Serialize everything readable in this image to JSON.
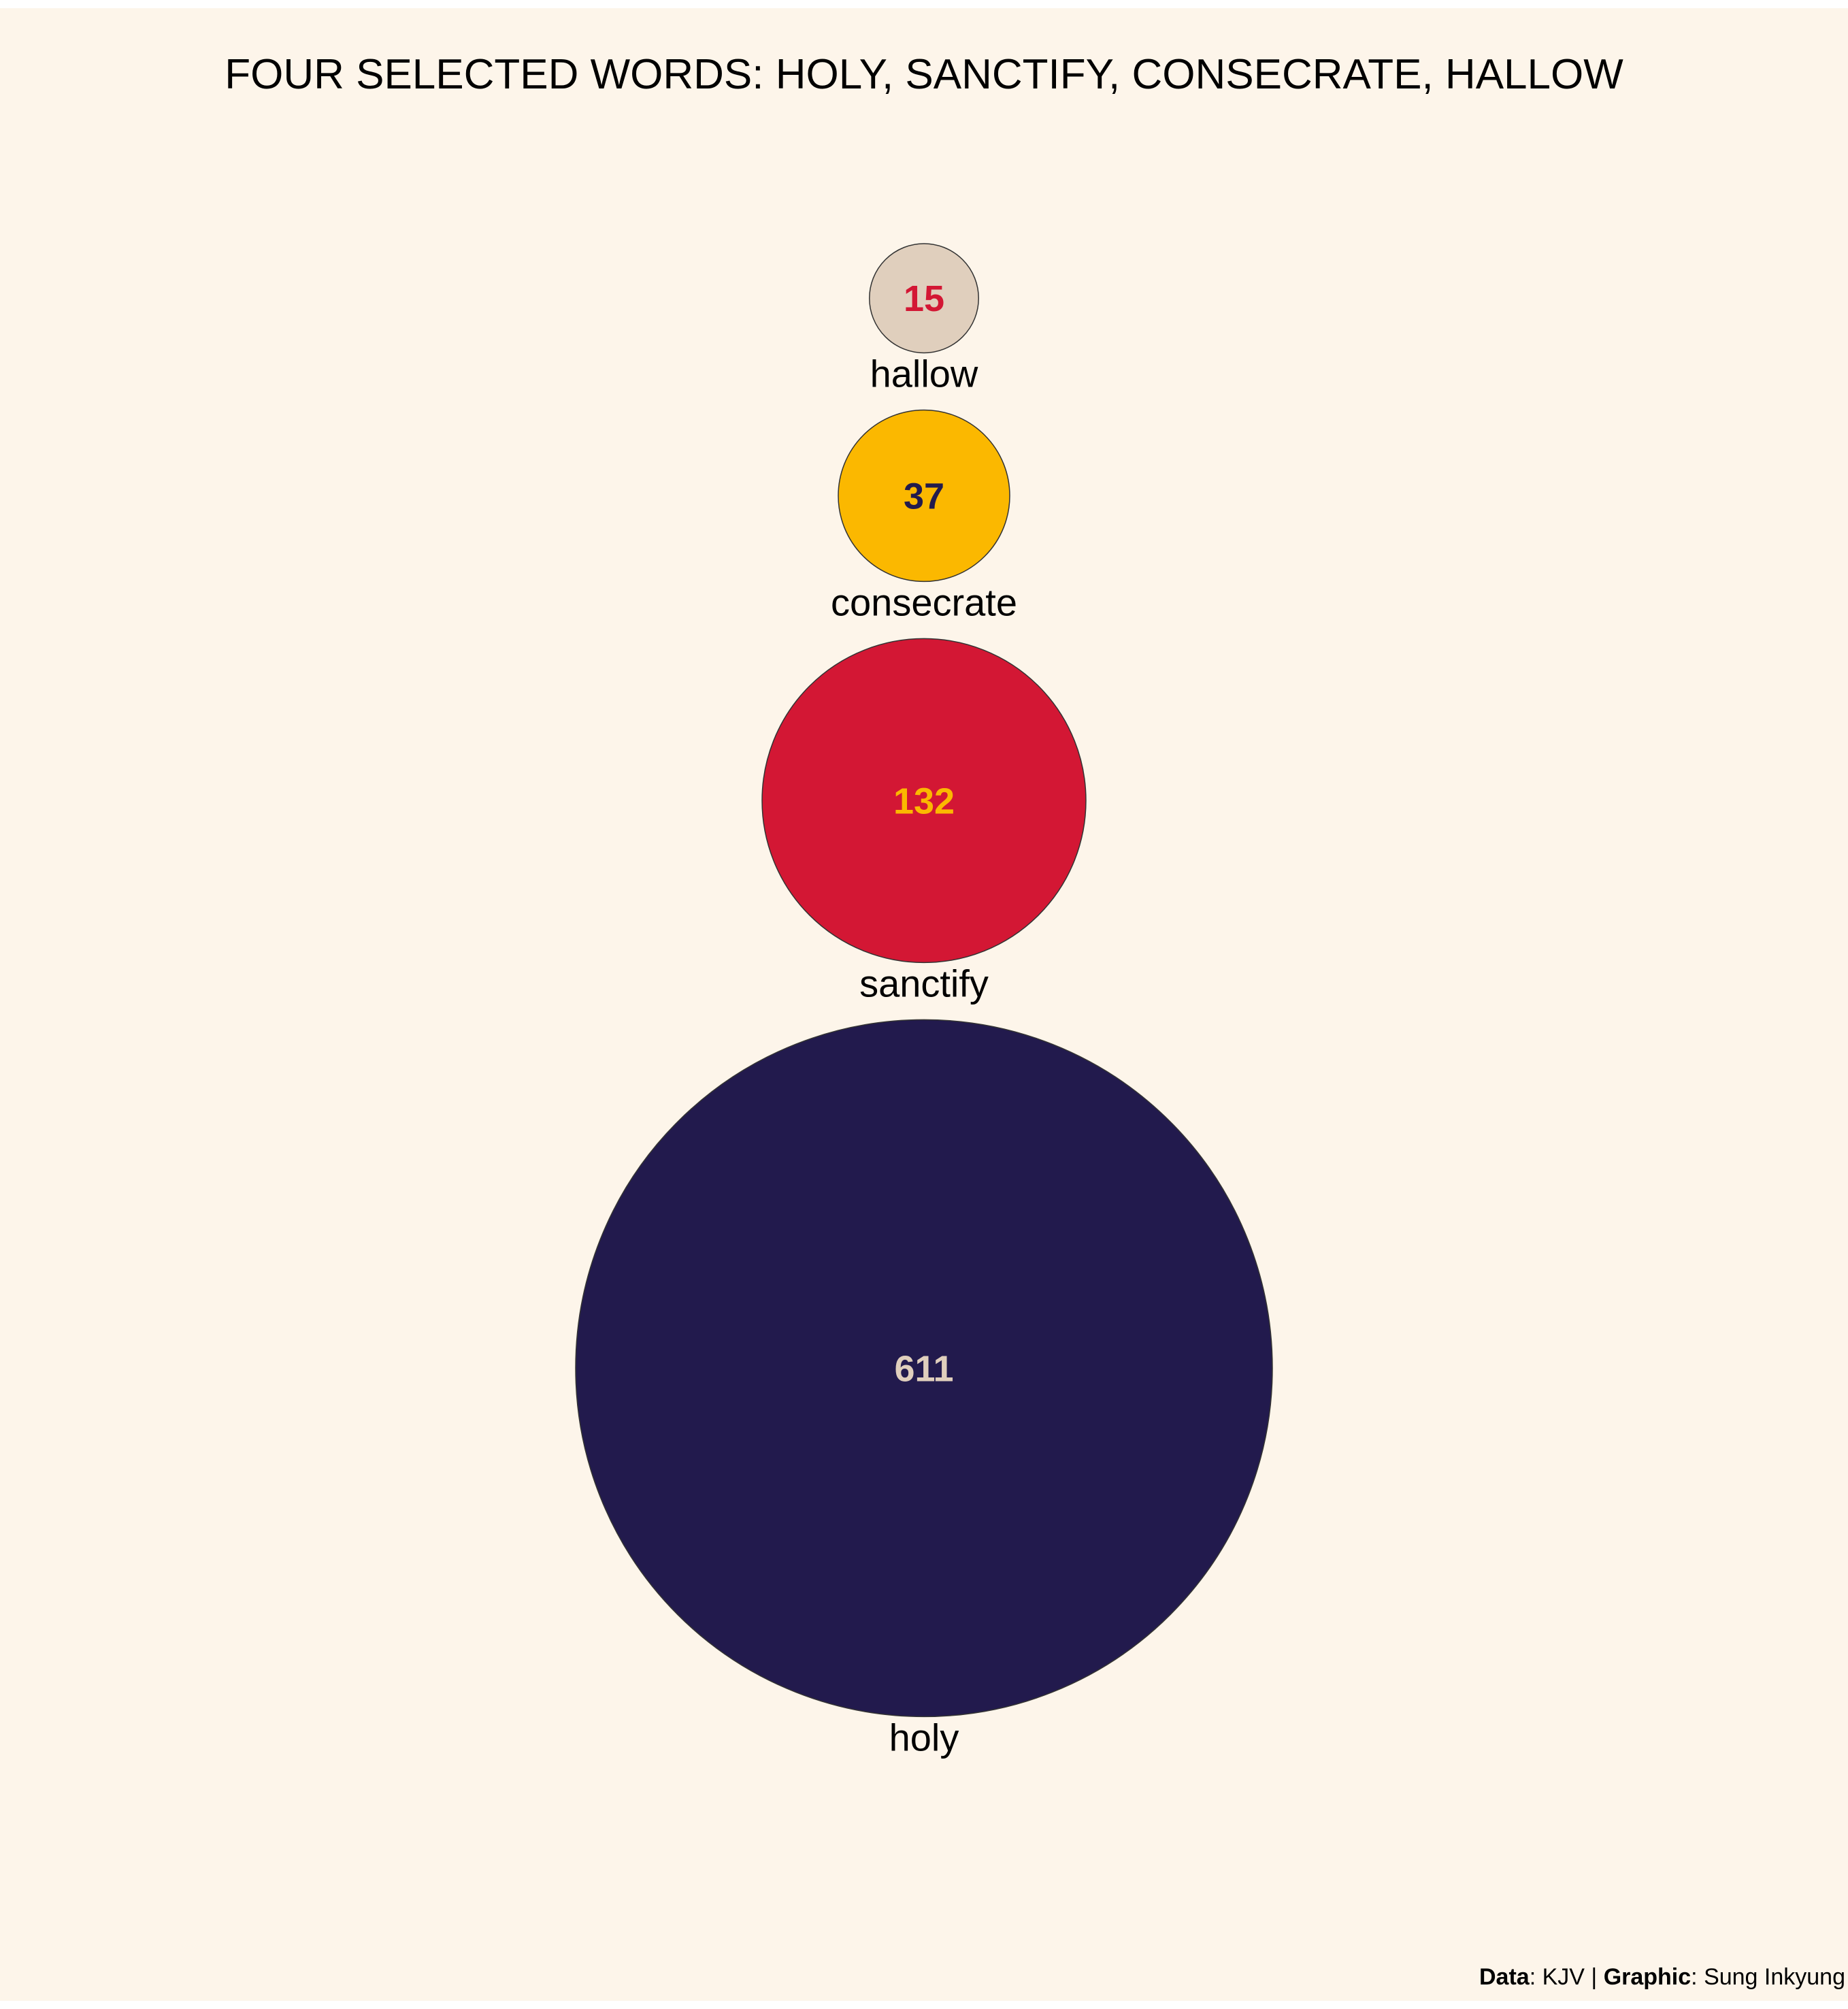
{
  "chart_data": {
    "type": "bubble",
    "title": "FOUR SELECTED WORDS: HOLY, SANCTIFY, CONSECRATE, HALLOW",
    "xlabel": "",
    "ylabel": "",
    "grid": false,
    "legend": "none",
    "layout": "vertical-stack",
    "points": [
      {
        "word": "hallow",
        "value": 15,
        "fill": "#e0cfbd",
        "label_color": "#d31734"
      },
      {
        "word": "consecrate",
        "value": 37,
        "fill": "#fbb800",
        "label_color": "#221a4d"
      },
      {
        "word": "sanctify",
        "value": 132,
        "fill": "#d31734",
        "label_color": "#fbb800"
      },
      {
        "word": "holy",
        "value": 611,
        "fill": "#221a4d",
        "label_color": "#e0cfbd"
      }
    ]
  },
  "caption": {
    "data_label": "Data",
    "data_value": ": KJV | ",
    "graphic_label": "Graphic",
    "graphic_value": ": Sung Inkyung"
  },
  "colors": {
    "background": "#fdf5ea",
    "outline": "#333333"
  }
}
